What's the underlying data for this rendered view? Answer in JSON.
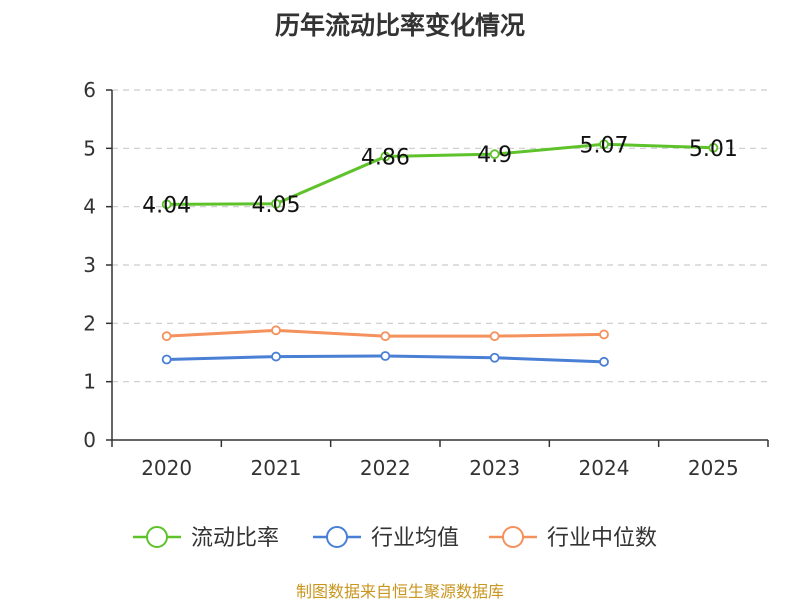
{
  "chart_data": {
    "type": "line",
    "title": "历年流动比率变化情况",
    "categories": [
      "2020",
      "2021",
      "2022",
      "2023",
      "2024",
      "2025"
    ],
    "ylim": [
      0,
      6
    ],
    "yticks": [
      0,
      1,
      2,
      3,
      4,
      5,
      6
    ],
    "grid": true,
    "legend_position": "bottom",
    "series": [
      {
        "name": "流动比率",
        "color": "#5ec22b",
        "values": [
          4.04,
          4.05,
          4.86,
          4.9,
          5.07,
          5.01
        ],
        "labels": [
          "4.04",
          "4.05",
          "4.86",
          "4.9",
          "5.07",
          "5.01"
        ],
        "show_labels": true
      },
      {
        "name": "行业均值",
        "color": "#4a7fd6",
        "values": [
          1.38,
          1.43,
          1.44,
          1.41,
          1.34,
          null
        ],
        "show_labels": false
      },
      {
        "name": "行业中位数",
        "color": "#f4915c",
        "values": [
          1.78,
          1.88,
          1.78,
          1.78,
          1.81,
          null
        ],
        "show_labels": false
      }
    ]
  },
  "source": "制图数据来自恒生聚源数据库"
}
